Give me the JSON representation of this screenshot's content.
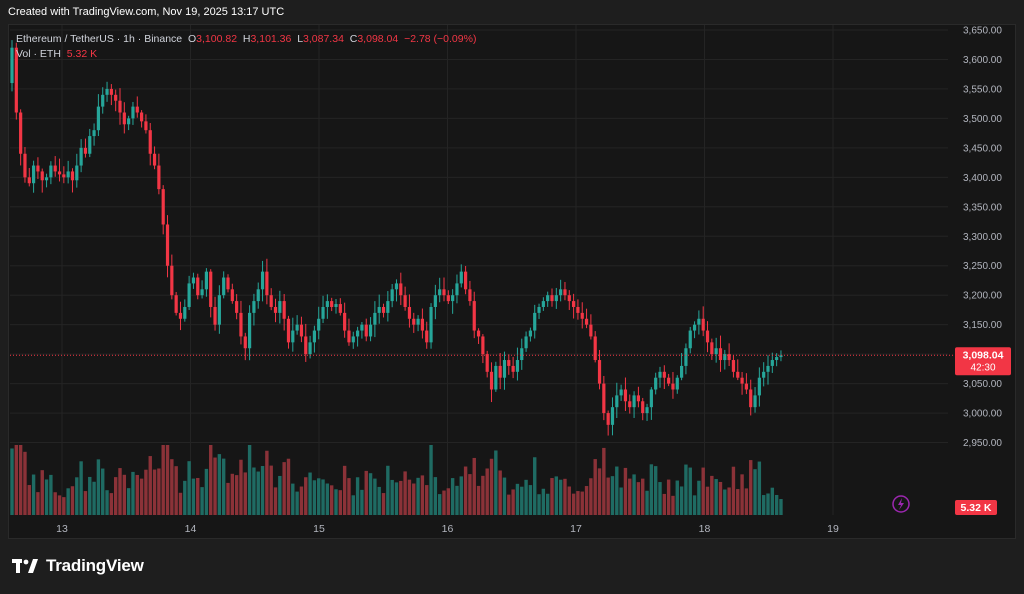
{
  "header": {
    "watermark": "Created with TradingView.com, Nov 19, 2025 13:17 UTC"
  },
  "legend": {
    "symbol": "Ethereum / TetherUS · 1h · Binance",
    "o_label": "O",
    "o_value": "3,100.82",
    "h_label": "H",
    "h_value": "3,101.36",
    "l_label": "L",
    "l_value": "3,087.34",
    "c_label": "C",
    "c_value": "3,098.04",
    "change": "−2.78 (−0.09%)",
    "vol_label": "Vol · ETH",
    "vol_value": "5.32 K"
  },
  "footer": {
    "brand": "TradingView"
  },
  "colors": {
    "up": "#26a69a",
    "down": "#f23645",
    "up_vol": "#1f6b63",
    "down_vol": "#8b3238",
    "price_tag": "#f23645",
    "flash": "#9c27b0"
  },
  "chart_data": {
    "type": "candlestick",
    "ylim": [
      2900,
      3650
    ],
    "yticks": [
      "3,650.00",
      "3,600.00",
      "3,550.00",
      "3,500.00",
      "3,450.00",
      "3,400.00",
      "3,350.00",
      "3,300.00",
      "3,250.00",
      "3,200.00",
      "3,150.00",
      "3,100.00",
      "3,050.00",
      "3,000.00",
      "2,950.00"
    ],
    "ytick_values": [
      3650,
      3600,
      3550,
      3500,
      3450,
      3400,
      3350,
      3300,
      3250,
      3200,
      3150,
      3100,
      3050,
      3000,
      2950
    ],
    "xticks": [
      "13",
      "14",
      "15",
      "16",
      "17",
      "18",
      "19"
    ],
    "last_price": 3098.04,
    "last_price_label": "3,098.04",
    "countdown": "42:30",
    "volume_label": "5.32 K",
    "candles_per_day": 24,
    "first_day_offset_hours": 13,
    "close": [
      3620,
      3510,
      3440,
      3400,
      3390,
      3420,
      3410,
      3395,
      3400,
      3420,
      3410,
      3405,
      3400,
      3410,
      3395,
      3420,
      3450,
      3440,
      3470,
      3480,
      3520,
      3540,
      3550,
      3540,
      3530,
      3510,
      3490,
      3500,
      3520,
      3510,
      3495,
      3480,
      3440,
      3420,
      3380,
      3320,
      3250,
      3200,
      3170,
      3160,
      3180,
      3220,
      3230,
      3200,
      3210,
      3240,
      3180,
      3150,
      3200,
      3230,
      3210,
      3190,
      3170,
      3130,
      3110,
      3170,
      3190,
      3210,
      3240,
      3200,
      3180,
      3170,
      3190,
      3160,
      3120,
      3140,
      3150,
      3130,
      3100,
      3120,
      3140,
      3160,
      3180,
      3190,
      3180,
      3185,
      3170,
      3140,
      3120,
      3130,
      3140,
      3150,
      3130,
      3150,
      3170,
      3180,
      3170,
      3190,
      3210,
      3220,
      3200,
      3180,
      3160,
      3150,
      3160,
      3140,
      3120,
      3180,
      3200,
      3210,
      3200,
      3190,
      3200,
      3220,
      3240,
      3210,
      3190,
      3140,
      3130,
      3100,
      3070,
      3040,
      3080,
      3060,
      3090,
      3080,
      3070,
      3090,
      3110,
      3130,
      3140,
      3170,
      3180,
      3190,
      3200,
      3190,
      3200,
      3210,
      3200,
      3190,
      3180,
      3170,
      3160,
      3150,
      3130,
      3090,
      3050,
      3000,
      2980,
      3010,
      3030,
      3040,
      3020,
      3010,
      3030,
      3020,
      3000,
      3010,
      3040,
      3060,
      3070,
      3060,
      3050,
      3040,
      3060,
      3080,
      3110,
      3140,
      3150,
      3160,
      3140,
      3120,
      3100,
      3110,
      3090,
      3100,
      3090,
      3070,
      3060,
      3050,
      3040,
      3010,
      3030,
      3060,
      3070,
      3080,
      3090,
      3095,
      3098
    ]
  }
}
